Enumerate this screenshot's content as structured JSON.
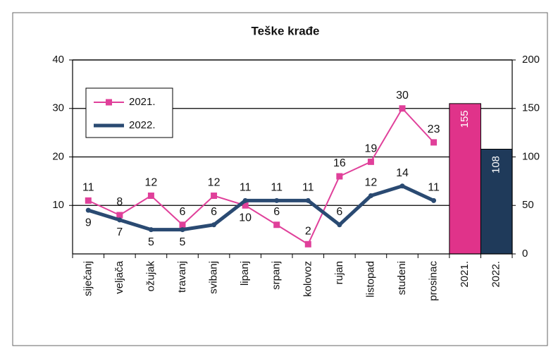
{
  "chart_data": {
    "type": "line",
    "title": "Teške krađe",
    "categories": [
      "siječanj",
      "veljača",
      "ožujak",
      "travanj",
      "svibanj",
      "lipanj",
      "srpanj",
      "kolovoz",
      "rujan",
      "listopad",
      "studeni",
      "prosinac",
      "2021.",
      "2022."
    ],
    "series": [
      {
        "name": "2021.",
        "color": "#e0409a",
        "values": [
          11,
          8,
          12,
          6,
          12,
          10,
          6,
          2,
          16,
          19,
          30,
          23,
          null,
          null
        ]
      },
      {
        "name": "2022.",
        "color": "#2a4a72",
        "values": [
          9,
          7,
          5,
          5,
          6,
          11,
          11,
          11,
          6,
          12,
          14,
          11,
          null,
          null
        ]
      }
    ],
    "bars": {
      "type": "bar",
      "axis": "y2",
      "values": [
        null,
        null,
        null,
        null,
        null,
        null,
        null,
        null,
        null,
        null,
        null,
        null,
        155,
        108
      ],
      "colors": [
        null,
        null,
        null,
        null,
        null,
        null,
        null,
        null,
        null,
        null,
        null,
        null,
        "#e0338a",
        "#1f3a5a"
      ]
    },
    "ylim": [
      0,
      40
    ],
    "yticks": [
      10,
      20,
      30,
      40
    ],
    "y2lim": [
      0,
      200
    ],
    "y2ticks": [
      0,
      50,
      100,
      150,
      200
    ],
    "grid": true,
    "legend": "upper left"
  }
}
